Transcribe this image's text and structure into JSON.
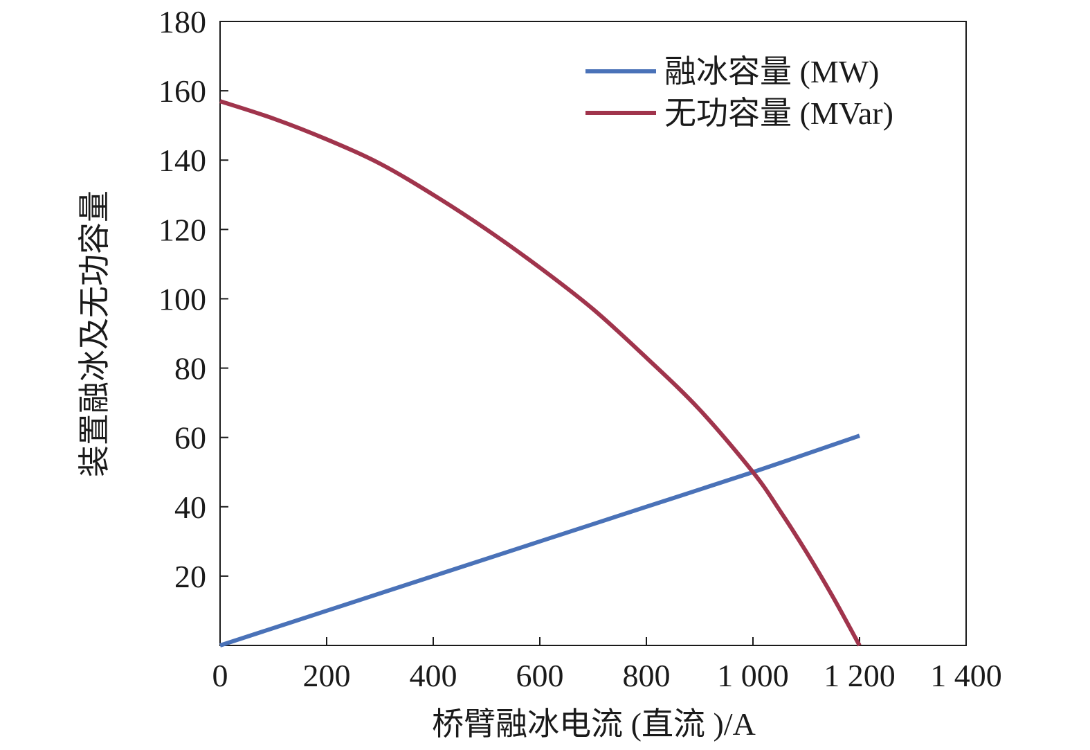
{
  "chart_data": {
    "type": "line",
    "title": "",
    "xlabel": "桥臂融冰电流 (直流 )/A",
    "ylabel": "装置融冰及无功容量",
    "xlim": [
      0,
      1400
    ],
    "ylim": [
      0,
      180
    ],
    "x_ticks": [
      0,
      200,
      400,
      600,
      800,
      1000,
      1200,
      1400
    ],
    "x_tick_labels": [
      "0",
      "200",
      "400",
      "600",
      "800",
      "1 000",
      "1 200",
      "1 400"
    ],
    "y_ticks": [
      20,
      40,
      60,
      80,
      100,
      120,
      140,
      160,
      180
    ],
    "y_tick_labels": [
      "20",
      "40",
      "60",
      "80",
      "100",
      "120",
      "140",
      "160",
      "180"
    ],
    "grid": false,
    "legend_position": "top-right",
    "series": [
      {
        "name": "融冰容量 (MW)",
        "color": "#4a72b8",
        "x": [
          0,
          200,
          400,
          600,
          800,
          1000,
          1200
        ],
        "y": [
          0,
          10,
          20,
          30,
          40,
          50,
          60.5
        ]
      },
      {
        "name": "无功容量 (MVar)",
        "color": "#a0344c",
        "x": [
          0,
          100,
          200,
          300,
          400,
          500,
          600,
          700,
          800,
          900,
          1000,
          1050,
          1100,
          1150,
          1200
        ],
        "y": [
          157,
          152,
          146,
          139,
          130,
          120,
          109,
          97,
          83,
          68,
          50,
          39,
          27,
          14,
          0
        ]
      }
    ]
  }
}
